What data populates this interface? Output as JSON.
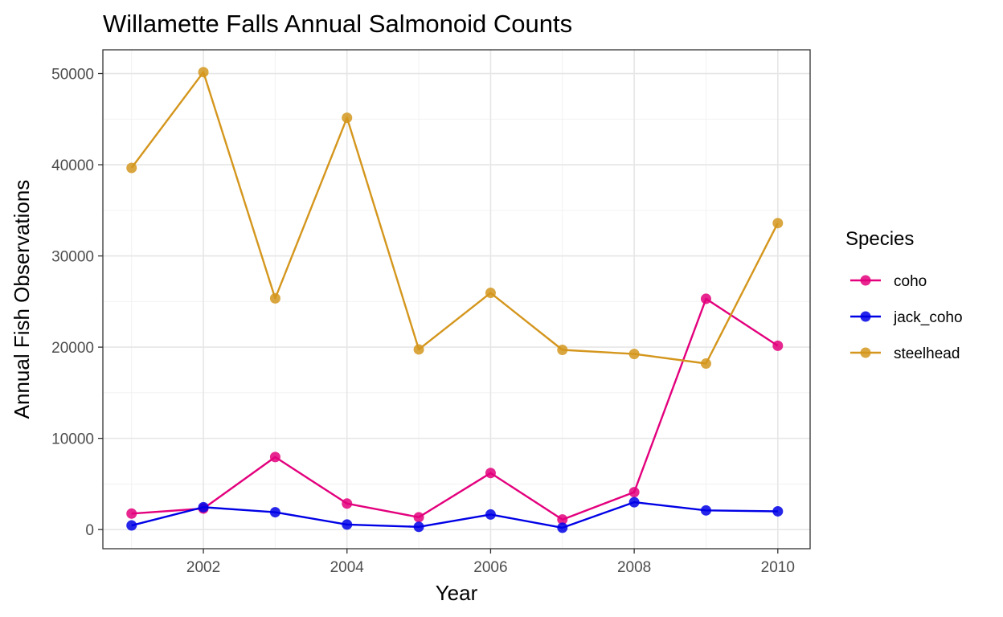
{
  "chart_data": {
    "type": "line",
    "title": "Willamette Falls Annual Salmonoid Counts",
    "xlabel": "Year",
    "ylabel": "Annual Fish Observations",
    "x": [
      2001,
      2002,
      2003,
      2004,
      2005,
      2006,
      2007,
      2008,
      2009,
      2010
    ],
    "xlim": [
      2000.6,
      2010.45
    ],
    "ylim": [
      -2100,
      52600
    ],
    "x_ticks": [
      2002,
      2004,
      2006,
      2008,
      2010
    ],
    "x_minor_ticks": [
      2001,
      2003,
      2005,
      2007,
      2009
    ],
    "y_ticks": [
      0,
      10000,
      20000,
      30000,
      40000,
      50000
    ],
    "y_minor_ticks": [
      5000,
      15000,
      25000,
      35000,
      45000
    ],
    "grid": true,
    "legend": {
      "title": "Species",
      "position": "right"
    },
    "series": [
      {
        "name": "coho",
        "color": "#e3007d",
        "values": [
          1750,
          2300,
          7950,
          2850,
          1350,
          6200,
          1100,
          4100,
          25300,
          20150
        ]
      },
      {
        "name": "jack_coho",
        "color": "#0000e6",
        "values": [
          450,
          2450,
          1900,
          550,
          300,
          1650,
          200,
          3000,
          2100,
          2000
        ]
      },
      {
        "name": "steelhead",
        "color": "#d4961d",
        "values": [
          39650,
          50150,
          25350,
          45150,
          19750,
          25950,
          19700,
          19250,
          18200,
          33600
        ]
      }
    ]
  }
}
